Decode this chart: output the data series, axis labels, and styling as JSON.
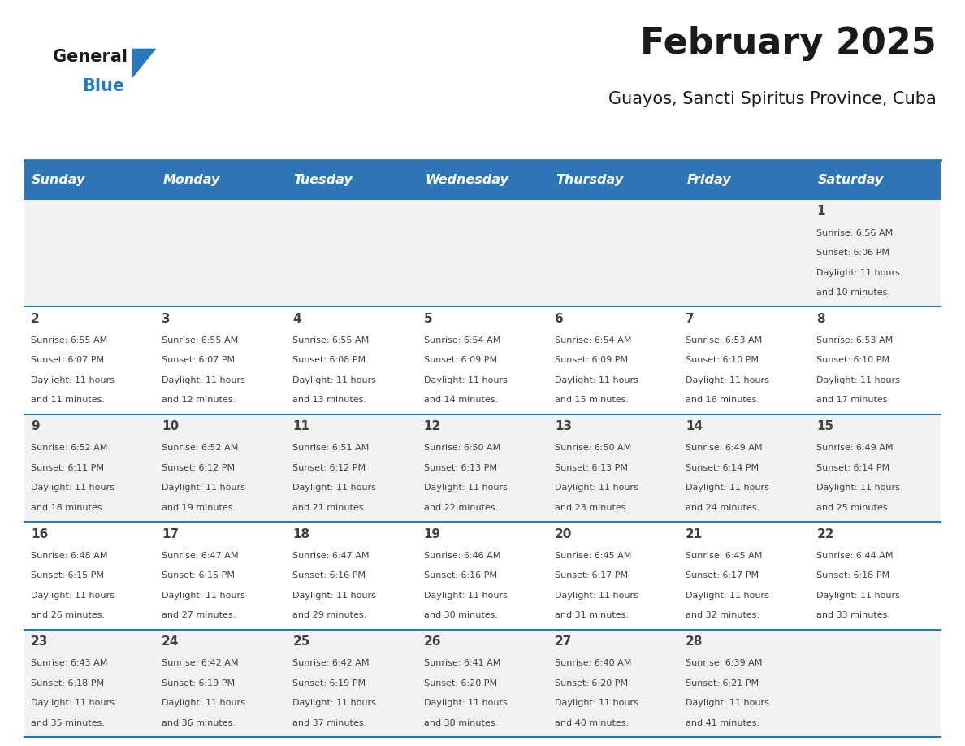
{
  "title": "February 2025",
  "subtitle": "Guayos, Sancti Spiritus Province, Cuba",
  "header_bg": "#2E75B6",
  "header_text_color": "#FFFFFF",
  "cell_bg_white": "#FFFFFF",
  "cell_bg_gray": "#F2F2F2",
  "row_line_color": "#2E75B6",
  "text_color": "#404040",
  "days_of_week": [
    "Sunday",
    "Monday",
    "Tuesday",
    "Wednesday",
    "Thursday",
    "Friday",
    "Saturday"
  ],
  "calendar_data": [
    [
      {
        "day": "",
        "sunrise": "",
        "sunset": "",
        "daylight": ""
      },
      {
        "day": "",
        "sunrise": "",
        "sunset": "",
        "daylight": ""
      },
      {
        "day": "",
        "sunrise": "",
        "sunset": "",
        "daylight": ""
      },
      {
        "day": "",
        "sunrise": "",
        "sunset": "",
        "daylight": ""
      },
      {
        "day": "",
        "sunrise": "",
        "sunset": "",
        "daylight": ""
      },
      {
        "day": "",
        "sunrise": "",
        "sunset": "",
        "daylight": ""
      },
      {
        "day": "1",
        "sunrise": "Sunrise: 6:56 AM",
        "sunset": "Sunset: 6:06 PM",
        "daylight": "Daylight: 11 hours\nand 10 minutes."
      }
    ],
    [
      {
        "day": "2",
        "sunrise": "Sunrise: 6:55 AM",
        "sunset": "Sunset: 6:07 PM",
        "daylight": "Daylight: 11 hours\nand 11 minutes."
      },
      {
        "day": "3",
        "sunrise": "Sunrise: 6:55 AM",
        "sunset": "Sunset: 6:07 PM",
        "daylight": "Daylight: 11 hours\nand 12 minutes."
      },
      {
        "day": "4",
        "sunrise": "Sunrise: 6:55 AM",
        "sunset": "Sunset: 6:08 PM",
        "daylight": "Daylight: 11 hours\nand 13 minutes."
      },
      {
        "day": "5",
        "sunrise": "Sunrise: 6:54 AM",
        "sunset": "Sunset: 6:09 PM",
        "daylight": "Daylight: 11 hours\nand 14 minutes."
      },
      {
        "day": "6",
        "sunrise": "Sunrise: 6:54 AM",
        "sunset": "Sunset: 6:09 PM",
        "daylight": "Daylight: 11 hours\nand 15 minutes."
      },
      {
        "day": "7",
        "sunrise": "Sunrise: 6:53 AM",
        "sunset": "Sunset: 6:10 PM",
        "daylight": "Daylight: 11 hours\nand 16 minutes."
      },
      {
        "day": "8",
        "sunrise": "Sunrise: 6:53 AM",
        "sunset": "Sunset: 6:10 PM",
        "daylight": "Daylight: 11 hours\nand 17 minutes."
      }
    ],
    [
      {
        "day": "9",
        "sunrise": "Sunrise: 6:52 AM",
        "sunset": "Sunset: 6:11 PM",
        "daylight": "Daylight: 11 hours\nand 18 minutes."
      },
      {
        "day": "10",
        "sunrise": "Sunrise: 6:52 AM",
        "sunset": "Sunset: 6:12 PM",
        "daylight": "Daylight: 11 hours\nand 19 minutes."
      },
      {
        "day": "11",
        "sunrise": "Sunrise: 6:51 AM",
        "sunset": "Sunset: 6:12 PM",
        "daylight": "Daylight: 11 hours\nand 21 minutes."
      },
      {
        "day": "12",
        "sunrise": "Sunrise: 6:50 AM",
        "sunset": "Sunset: 6:13 PM",
        "daylight": "Daylight: 11 hours\nand 22 minutes."
      },
      {
        "day": "13",
        "sunrise": "Sunrise: 6:50 AM",
        "sunset": "Sunset: 6:13 PM",
        "daylight": "Daylight: 11 hours\nand 23 minutes."
      },
      {
        "day": "14",
        "sunrise": "Sunrise: 6:49 AM",
        "sunset": "Sunset: 6:14 PM",
        "daylight": "Daylight: 11 hours\nand 24 minutes."
      },
      {
        "day": "15",
        "sunrise": "Sunrise: 6:49 AM",
        "sunset": "Sunset: 6:14 PM",
        "daylight": "Daylight: 11 hours\nand 25 minutes."
      }
    ],
    [
      {
        "day": "16",
        "sunrise": "Sunrise: 6:48 AM",
        "sunset": "Sunset: 6:15 PM",
        "daylight": "Daylight: 11 hours\nand 26 minutes."
      },
      {
        "day": "17",
        "sunrise": "Sunrise: 6:47 AM",
        "sunset": "Sunset: 6:15 PM",
        "daylight": "Daylight: 11 hours\nand 27 minutes."
      },
      {
        "day": "18",
        "sunrise": "Sunrise: 6:47 AM",
        "sunset": "Sunset: 6:16 PM",
        "daylight": "Daylight: 11 hours\nand 29 minutes."
      },
      {
        "day": "19",
        "sunrise": "Sunrise: 6:46 AM",
        "sunset": "Sunset: 6:16 PM",
        "daylight": "Daylight: 11 hours\nand 30 minutes."
      },
      {
        "day": "20",
        "sunrise": "Sunrise: 6:45 AM",
        "sunset": "Sunset: 6:17 PM",
        "daylight": "Daylight: 11 hours\nand 31 minutes."
      },
      {
        "day": "21",
        "sunrise": "Sunrise: 6:45 AM",
        "sunset": "Sunset: 6:17 PM",
        "daylight": "Daylight: 11 hours\nand 32 minutes."
      },
      {
        "day": "22",
        "sunrise": "Sunrise: 6:44 AM",
        "sunset": "Sunset: 6:18 PM",
        "daylight": "Daylight: 11 hours\nand 33 minutes."
      }
    ],
    [
      {
        "day": "23",
        "sunrise": "Sunrise: 6:43 AM",
        "sunset": "Sunset: 6:18 PM",
        "daylight": "Daylight: 11 hours\nand 35 minutes."
      },
      {
        "day": "24",
        "sunrise": "Sunrise: 6:42 AM",
        "sunset": "Sunset: 6:19 PM",
        "daylight": "Daylight: 11 hours\nand 36 minutes."
      },
      {
        "day": "25",
        "sunrise": "Sunrise: 6:42 AM",
        "sunset": "Sunset: 6:19 PM",
        "daylight": "Daylight: 11 hours\nand 37 minutes."
      },
      {
        "day": "26",
        "sunrise": "Sunrise: 6:41 AM",
        "sunset": "Sunset: 6:20 PM",
        "daylight": "Daylight: 11 hours\nand 38 minutes."
      },
      {
        "day": "27",
        "sunrise": "Sunrise: 6:40 AM",
        "sunset": "Sunset: 6:20 PM",
        "daylight": "Daylight: 11 hours\nand 40 minutes."
      },
      {
        "day": "28",
        "sunrise": "Sunrise: 6:39 AM",
        "sunset": "Sunset: 6:21 PM",
        "daylight": "Daylight: 11 hours\nand 41 minutes."
      },
      {
        "day": "",
        "sunrise": "",
        "sunset": "",
        "daylight": ""
      }
    ]
  ],
  "logo_text_general": "General",
  "logo_text_blue": "Blue",
  "logo_color_general": "#1a1a1a",
  "logo_color_blue": "#2779BD",
  "logo_triangle_color": "#2779BD"
}
